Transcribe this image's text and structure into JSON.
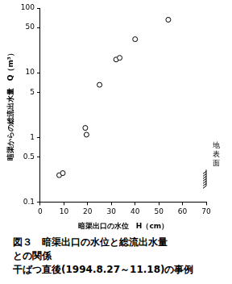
{
  "chart_data": {
    "type": "scatter",
    "title": [
      "図３　暗渠出口の水位と総流出水量",
      "との関係",
      "干ばつ直後(1994.8.27～11.18)の事例"
    ],
    "x_label": "暗渠出口の水位　H（cm）",
    "y_label": "暗渠からの総流出水量　Q（m³）",
    "x": [
      8,
      9.5,
      19,
      19.5,
      25,
      32,
      33.5,
      40,
      54
    ],
    "values": [
      0.26,
      0.28,
      1.4,
      1.1,
      6.5,
      16,
      17,
      33,
      66
    ],
    "color": "#000000",
    "marker": "open_circle",
    "xlim": [
      0,
      70
    ],
    "xticks": [
      0,
      10,
      20,
      30,
      40,
      50,
      60,
      70
    ],
    "ylim": [
      0.1,
      100
    ],
    "yticks": [
      0.1,
      0.5,
      1,
      5,
      10,
      50,
      100
    ],
    "log": "y",
    "grid": false,
    "annotations": [
      {
        "text": "地表面",
        "x": 70
      }
    ]
  }
}
